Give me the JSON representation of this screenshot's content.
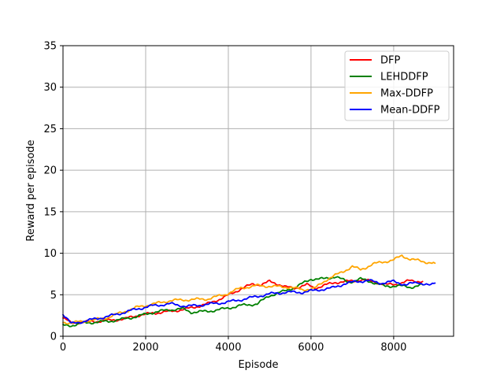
{
  "chart_data": {
    "type": "line",
    "title": "",
    "xlabel": "Episode",
    "ylabel": "Reward per episode",
    "xlim": [
      0,
      9450
    ],
    "ylim": [
      0,
      35
    ],
    "xticks": [
      0,
      2000,
      4000,
      6000,
      8000
    ],
    "xtick_labels": [
      "0",
      "2000",
      "4000",
      "6000",
      "8000"
    ],
    "yticks": [
      0,
      5,
      10,
      15,
      20,
      25,
      30,
      35
    ],
    "ytick_labels": [
      "0",
      "5",
      "10",
      "15",
      "20",
      "25",
      "30",
      "35"
    ],
    "grid": true,
    "legend_position": "top-right",
    "series": [
      {
        "name": "DFP",
        "color": "#ff0000",
        "x": [
          0,
          200,
          500,
          800,
          1100,
          1500,
          1800,
          2200,
          2600,
          3000,
          3500,
          3900,
          4300,
          4600,
          4800,
          5000,
          5200,
          5400,
          5600,
          5900,
          6100,
          6300,
          6600,
          6900,
          7200,
          7500,
          7800,
          8100,
          8400,
          8700
        ],
        "y": [
          2.2,
          1.6,
          1.7,
          1.8,
          1.9,
          2.1,
          2.5,
          2.8,
          3.0,
          3.3,
          3.9,
          4.7,
          5.7,
          6.3,
          6.2,
          6.6,
          6.3,
          5.9,
          5.8,
          6.2,
          5.8,
          6.1,
          6.5,
          6.6,
          6.8,
          6.6,
          6.2,
          6.3,
          6.7,
          6.6
        ]
      },
      {
        "name": "LEHDDFP",
        "color": "#008000",
        "x": [
          0,
          200,
          500,
          800,
          1100,
          1500,
          1800,
          2200,
          2600,
          2900,
          3100,
          3500,
          3900,
          4300,
          4700,
          5000,
          5400,
          5700,
          6000,
          6300,
          6600,
          6900,
          7200,
          7500,
          7800,
          8100,
          8400,
          8700
        ],
        "y": [
          1.3,
          1.3,
          1.6,
          1.7,
          1.8,
          2.1,
          2.4,
          2.9,
          3.2,
          3.3,
          2.9,
          3.0,
          3.3,
          3.7,
          3.9,
          4.9,
          5.5,
          6.1,
          6.9,
          6.9,
          7.2,
          6.5,
          6.9,
          6.5,
          6.0,
          6.1,
          5.9,
          6.2
        ]
      },
      {
        "name": "Max-DDFP",
        "color": "#ffa500",
        "x": [
          0,
          200,
          500,
          800,
          1100,
          1500,
          1800,
          2200,
          2600,
          3000,
          3500,
          3900,
          4300,
          4700,
          5100,
          5500,
          5800,
          6100,
          6400,
          6700,
          7000,
          7200,
          7500,
          7800,
          8000,
          8200,
          8400,
          8700,
          9000
        ],
        "y": [
          1.7,
          1.6,
          1.8,
          2.0,
          2.3,
          3.0,
          3.5,
          3.9,
          4.3,
          4.4,
          4.5,
          5.0,
          5.8,
          6.1,
          6.0,
          5.9,
          5.6,
          5.8,
          6.9,
          7.6,
          8.4,
          8.0,
          8.7,
          9.0,
          9.2,
          9.7,
          9.3,
          9.0,
          8.8
        ]
      },
      {
        "name": "Mean-DDFP",
        "color": "#0000ff",
        "x": [
          0,
          200,
          500,
          800,
          1100,
          1500,
          1800,
          2200,
          2600,
          3000,
          3400,
          3800,
          4200,
          4600,
          5000,
          5400,
          5800,
          6200,
          6500,
          6800,
          7100,
          7400,
          7700,
          8000,
          8300,
          8600,
          8900,
          9000
        ],
        "y": [
          2.7,
          1.5,
          1.8,
          2.1,
          2.4,
          2.9,
          3.3,
          3.7,
          3.9,
          3.6,
          3.8,
          4.0,
          4.3,
          4.7,
          5.1,
          5.3,
          5.3,
          5.6,
          5.8,
          6.3,
          6.6,
          6.7,
          6.4,
          6.6,
          6.2,
          6.5,
          6.1,
          6.4
        ]
      }
    ]
  }
}
